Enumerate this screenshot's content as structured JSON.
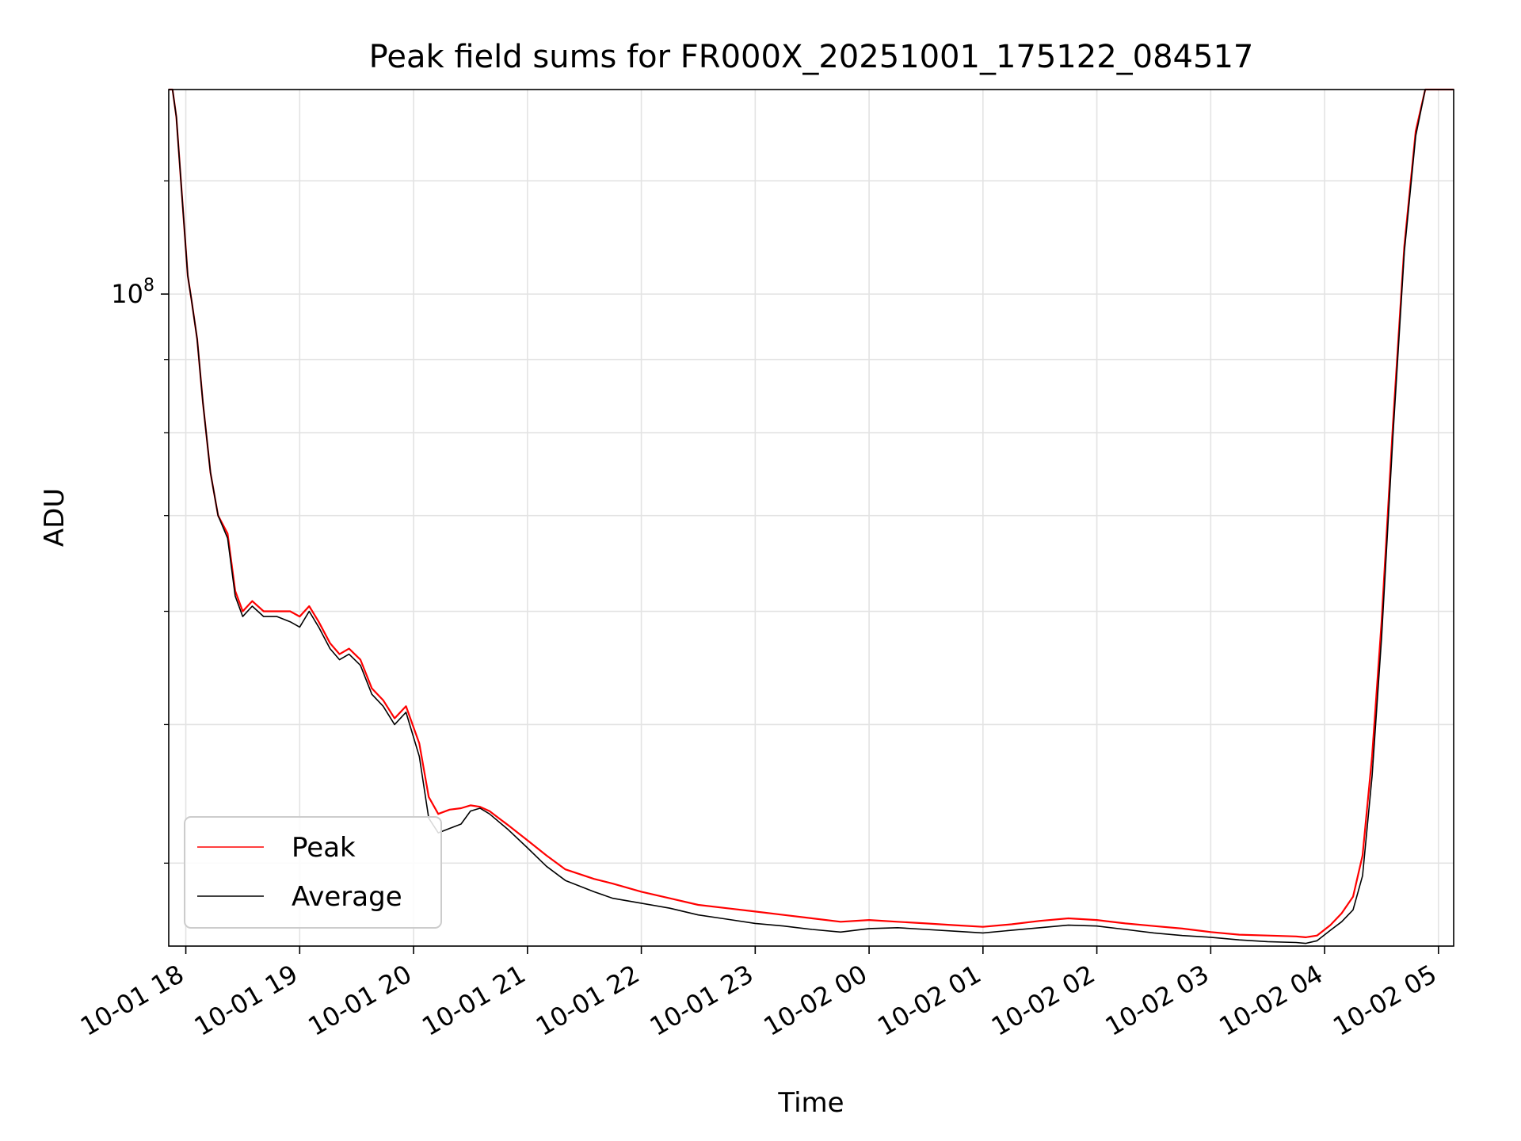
{
  "chart_data": {
    "type": "line",
    "title": "Peak field sums for FR000X_20251001_175122_084517",
    "xlabel": "Time",
    "ylabel": "ADU",
    "y_scale": "log",
    "ylim": [
      35000000,
      139000000
    ],
    "xlim": [
      "2025-10-01 17:51",
      "2025-10-02 05:08"
    ],
    "grid": true,
    "legend_position": "lower-left",
    "x_tick_labels": [
      "10-01 18",
      "10-01 19",
      "10-01 20",
      "10-01 21",
      "10-01 22",
      "10-01 23",
      "10-02 00",
      "10-02 01",
      "10-02 02",
      "10-02 03",
      "10-02 04",
      "10-02 05"
    ],
    "x_ticks": [
      "2025-10-01 18:00",
      "2025-10-01 19:00",
      "2025-10-01 20:00",
      "2025-10-01 21:00",
      "2025-10-01 22:00",
      "2025-10-01 23:00",
      "2025-10-02 00:00",
      "2025-10-02 01:00",
      "2025-10-02 02:00",
      "2025-10-02 03:00",
      "2025-10-02 04:00",
      "2025-10-02 05:00"
    ],
    "y_tick_label": {
      "base": "10",
      "exponent": "8",
      "value": 100000000
    },
    "y_minor_ticks": [
      40000000,
      50000000,
      60000000,
      70000000,
      80000000,
      90000000,
      120000000
    ],
    "series": [
      {
        "name": "Peak",
        "color": "#ff0000",
        "x": [
          "2025-10-01 17:51",
          "2025-10-01 17:53",
          "2025-10-01 17:55",
          "2025-10-01 17:58",
          "2025-10-01 18:01",
          "2025-10-01 18:03",
          "2025-10-01 18:06",
          "2025-10-01 18:09",
          "2025-10-01 18:13",
          "2025-10-01 18:17",
          "2025-10-01 18:22",
          "2025-10-01 18:26",
          "2025-10-01 18:30",
          "2025-10-01 18:35",
          "2025-10-01 18:41",
          "2025-10-01 18:48",
          "2025-10-01 18:55",
          "2025-10-01 19:00",
          "2025-10-01 19:05",
          "2025-10-01 19:10",
          "2025-10-01 19:16",
          "2025-10-01 19:21",
          "2025-10-01 19:26",
          "2025-10-01 19:32",
          "2025-10-01 19:38",
          "2025-10-01 19:44",
          "2025-10-01 19:50",
          "2025-10-01 19:56",
          "2025-10-01 20:03",
          "2025-10-01 20:08",
          "2025-10-01 20:13",
          "2025-10-01 20:19",
          "2025-10-01 20:25",
          "2025-10-01 20:30",
          "2025-10-01 20:35",
          "2025-10-01 20:40",
          "2025-10-01 20:50",
          "2025-10-01 21:00",
          "2025-10-01 21:10",
          "2025-10-01 21:20",
          "2025-10-01 21:35",
          "2025-10-01 21:45",
          "2025-10-01 22:00",
          "2025-10-01 22:15",
          "2025-10-01 22:30",
          "2025-10-01 22:45",
          "2025-10-01 23:00",
          "2025-10-01 23:15",
          "2025-10-01 23:30",
          "2025-10-01 23:45",
          "2025-10-02 00:00",
          "2025-10-02 00:15",
          "2025-10-02 00:30",
          "2025-10-02 00:45",
          "2025-10-02 01:00",
          "2025-10-02 01:15",
          "2025-10-02 01:30",
          "2025-10-02 01:45",
          "2025-10-02 02:00",
          "2025-10-02 02:15",
          "2025-10-02 02:30",
          "2025-10-02 02:45",
          "2025-10-02 03:00",
          "2025-10-02 03:15",
          "2025-10-02 03:30",
          "2025-10-02 03:45",
          "2025-10-02 03:50",
          "2025-10-02 03:56",
          "2025-10-02 04:03",
          "2025-10-02 04:09",
          "2025-10-02 04:15",
          "2025-10-02 04:20",
          "2025-10-02 04:25",
          "2025-10-02 04:30",
          "2025-10-02 04:36",
          "2025-10-02 04:42",
          "2025-10-02 04:48",
          "2025-10-02 04:53",
          "2025-10-02 05:00",
          "2025-10-02 05:08"
        ],
        "y": [
          139000000,
          139000000,
          133000000,
          117000000,
          103000000,
          99000000,
          93000000,
          84000000,
          75000000,
          70000000,
          68000000,
          62000000,
          60000000,
          61000000,
          60000000,
          60000000,
          60000000,
          59500000,
          60500000,
          59000000,
          57000000,
          56000000,
          56500000,
          55500000,
          53000000,
          52000000,
          50500000,
          51500000,
          48500000,
          44500000,
          43300000,
          43600000,
          43700000,
          43900000,
          43800000,
          43500000,
          42500000,
          41500000,
          40500000,
          39600000,
          39000000,
          38700000,
          38200000,
          37800000,
          37400000,
          37200000,
          37000000,
          36800000,
          36600000,
          36400000,
          36500000,
          36400000,
          36300000,
          36200000,
          36100000,
          36250000,
          36450000,
          36600000,
          36500000,
          36300000,
          36150000,
          36000000,
          35800000,
          35650000,
          35600000,
          35550000,
          35500000,
          35600000,
          36200000,
          36900000,
          37900000,
          40500000,
          47500000,
          59000000,
          81000000,
          108000000,
          130000000,
          139000000,
          139000000,
          139000000
        ]
      },
      {
        "name": "Average",
        "color": "#000000",
        "x": [
          "2025-10-01 17:51",
          "2025-10-01 17:53",
          "2025-10-01 17:55",
          "2025-10-01 17:58",
          "2025-10-01 18:01",
          "2025-10-01 18:03",
          "2025-10-01 18:06",
          "2025-10-01 18:09",
          "2025-10-01 18:13",
          "2025-10-01 18:17",
          "2025-10-01 18:22",
          "2025-10-01 18:26",
          "2025-10-01 18:30",
          "2025-10-01 18:35",
          "2025-10-01 18:41",
          "2025-10-01 18:48",
          "2025-10-01 18:55",
          "2025-10-01 19:00",
          "2025-10-01 19:05",
          "2025-10-01 19:10",
          "2025-10-01 19:16",
          "2025-10-01 19:21",
          "2025-10-01 19:26",
          "2025-10-01 19:32",
          "2025-10-01 19:38",
          "2025-10-01 19:44",
          "2025-10-01 19:50",
          "2025-10-01 19:56",
          "2025-10-01 20:03",
          "2025-10-01 20:08",
          "2025-10-01 20:13",
          "2025-10-01 20:19",
          "2025-10-01 20:25",
          "2025-10-01 20:30",
          "2025-10-01 20:35",
          "2025-10-01 20:40",
          "2025-10-01 20:50",
          "2025-10-01 21:00",
          "2025-10-01 21:10",
          "2025-10-01 21:20",
          "2025-10-01 21:35",
          "2025-10-01 21:45",
          "2025-10-01 22:00",
          "2025-10-01 22:15",
          "2025-10-01 22:30",
          "2025-10-01 22:45",
          "2025-10-01 23:00",
          "2025-10-01 23:15",
          "2025-10-01 23:30",
          "2025-10-01 23:45",
          "2025-10-02 00:00",
          "2025-10-02 00:15",
          "2025-10-02 00:30",
          "2025-10-02 00:45",
          "2025-10-02 01:00",
          "2025-10-02 01:15",
          "2025-10-02 01:30",
          "2025-10-02 01:45",
          "2025-10-02 02:00",
          "2025-10-02 02:15",
          "2025-10-02 02:30",
          "2025-10-02 02:45",
          "2025-10-02 03:00",
          "2025-10-02 03:15",
          "2025-10-02 03:30",
          "2025-10-02 03:45",
          "2025-10-02 03:50",
          "2025-10-02 03:56",
          "2025-10-02 04:03",
          "2025-10-02 04:09",
          "2025-10-02 04:15",
          "2025-10-02 04:20",
          "2025-10-02 04:25",
          "2025-10-02 04:30",
          "2025-10-02 04:36",
          "2025-10-02 04:42",
          "2025-10-02 04:48",
          "2025-10-02 04:53",
          "2025-10-02 05:00",
          "2025-10-02 05:08"
        ],
        "y": [
          139000000,
          139000000,
          133000000,
          117000000,
          103000000,
          99000000,
          93000000,
          84000000,
          75000000,
          70000000,
          67500000,
          61500000,
          59500000,
          60500000,
          59500000,
          59500000,
          59000000,
          58500000,
          60000000,
          58500000,
          56500000,
          55500000,
          56000000,
          55000000,
          52500000,
          51500000,
          50000000,
          51000000,
          47500000,
          43000000,
          42000000,
          42300000,
          42600000,
          43500000,
          43700000,
          43300000,
          42200000,
          41000000,
          39800000,
          38900000,
          38200000,
          37800000,
          37500000,
          37200000,
          36800000,
          36550000,
          36300000,
          36150000,
          35950000,
          35800000,
          36000000,
          36050000,
          35950000,
          35850000,
          35750000,
          35900000,
          36050000,
          36200000,
          36150000,
          35950000,
          35750000,
          35600000,
          35500000,
          35350000,
          35250000,
          35200000,
          35150000,
          35300000,
          35900000,
          36400000,
          37100000,
          39200000,
          46000000,
          57500000,
          79500000,
          107000000,
          129000000,
          139000000,
          139000000,
          139000000
        ]
      }
    ]
  }
}
